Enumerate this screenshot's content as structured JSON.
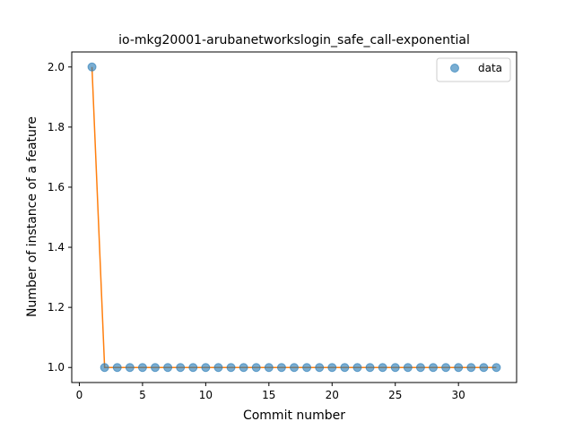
{
  "chart_data": {
    "type": "line",
    "title": "io-mkg20001-arubanetworkslogin_safe_call-exponential",
    "xlabel": "Commit number",
    "ylabel": "Number of instance of a feature",
    "xlim": [
      -0.6,
      34.6
    ],
    "ylim": [
      0.95,
      2.05
    ],
    "xticks": [
      0,
      5,
      10,
      15,
      20,
      25,
      30
    ],
    "yticks": [
      1.0,
      1.2,
      1.4,
      1.6,
      1.8,
      2.0
    ],
    "xtick_labels": [
      "0",
      "5",
      "10",
      "15",
      "20",
      "25",
      "30"
    ],
    "ytick_labels": [
      "1.0",
      "1.2",
      "1.4",
      "1.6",
      "1.8",
      "2.0"
    ],
    "x": [
      1,
      2,
      3,
      4,
      5,
      6,
      7,
      8,
      9,
      10,
      11,
      12,
      13,
      14,
      15,
      16,
      17,
      18,
      19,
      20,
      21,
      22,
      23,
      24,
      25,
      26,
      27,
      28,
      29,
      30,
      31,
      32,
      33
    ],
    "series": [
      {
        "name": "data",
        "style": "markers",
        "color": "#1f77b4",
        "values": [
          2,
          1,
          1,
          1,
          1,
          1,
          1,
          1,
          1,
          1,
          1,
          1,
          1,
          1,
          1,
          1,
          1,
          1,
          1,
          1,
          1,
          1,
          1,
          1,
          1,
          1,
          1,
          1,
          1,
          1,
          1,
          1,
          1
        ]
      },
      {
        "style": "line",
        "color": "#ff7f0e",
        "values": [
          2,
          1,
          1,
          1,
          1,
          1,
          1,
          1,
          1,
          1,
          1,
          1,
          1,
          1,
          1,
          1,
          1,
          1,
          1,
          1,
          1,
          1,
          1,
          1,
          1,
          1,
          1,
          1,
          1,
          1,
          1,
          1,
          1
        ]
      }
    ],
    "legend": {
      "placement": "top-right",
      "entries": [
        "data"
      ]
    },
    "grid": false
  }
}
